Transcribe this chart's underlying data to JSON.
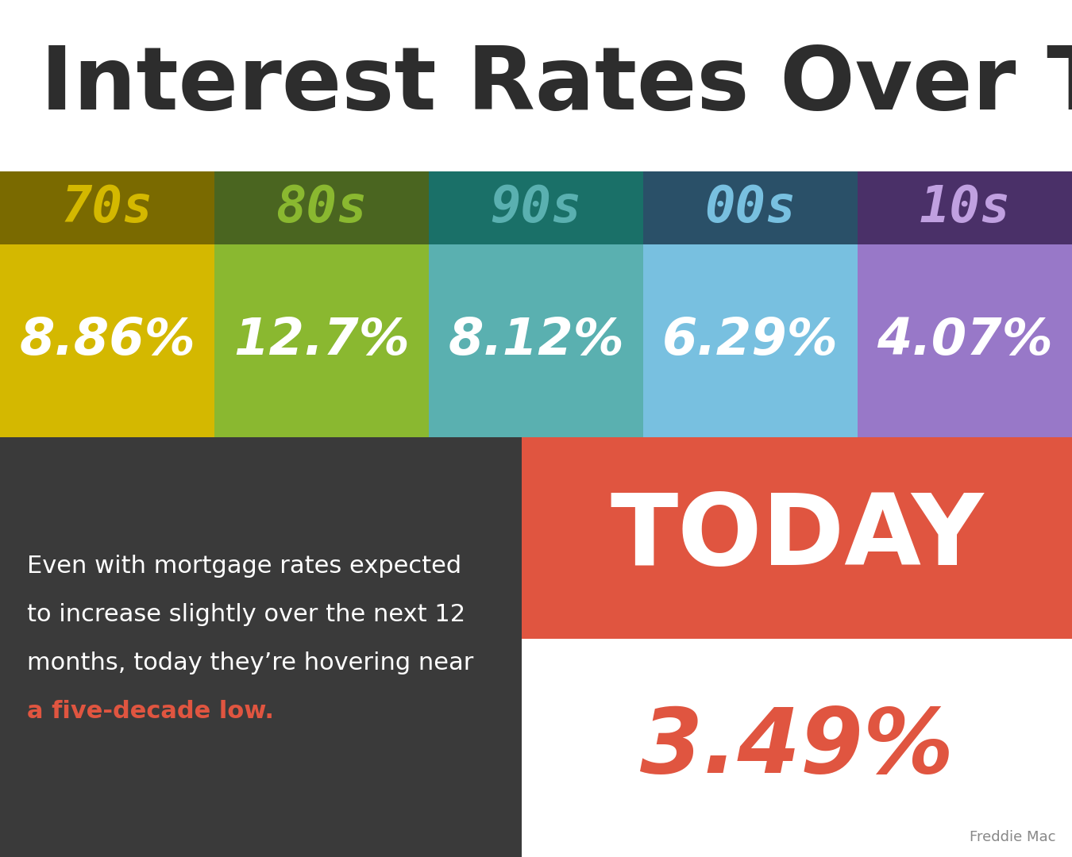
{
  "title": "Interest Rates Over Time",
  "title_color": "#2d2d2d",
  "title_fontsize": 80,
  "background_color": "#ffffff",
  "decades": [
    "70s",
    "80s",
    "90s",
    "00s",
    "10s"
  ],
  "decade_dark_colors": [
    "#7a6a00",
    "#4a6520",
    "#1a7068",
    "#2a5068",
    "#4a3068"
  ],
  "decade_light_colors": [
    "#d4b800",
    "#8ab830",
    "#5ab0b0",
    "#78c0e0",
    "#9878c8"
  ],
  "decade_label_colors": [
    "#d4b800",
    "#8ab830",
    "#5ab0b0",
    "#78c0e0",
    "#c0a0e0"
  ],
  "rates": [
    "8.86%",
    "12.7%",
    "8.12%",
    "6.29%",
    "4.07%"
  ],
  "today_label": "TODAY",
  "today_rate": "3.49%",
  "today_bg_color": "#e05540",
  "today_rate_color": "#e05540",
  "today_label_color": "#ffffff",
  "bottom_dark_bg": "#3a3a3a",
  "body_text_color": "#ffffff",
  "body_text_line1": "Even with mortgage rates expected",
  "body_text_line2": "to increase slightly over the next 12",
  "body_text_line3": "months, today they’re hovering near",
  "highlight_text": "a five-decade low.",
  "highlight_color": "#e05540",
  "freddie_text": "Freddie Mac",
  "freddie_color": "#888888",
  "fig_width": 13.5,
  "fig_height": 10.8,
  "dpi": 100
}
